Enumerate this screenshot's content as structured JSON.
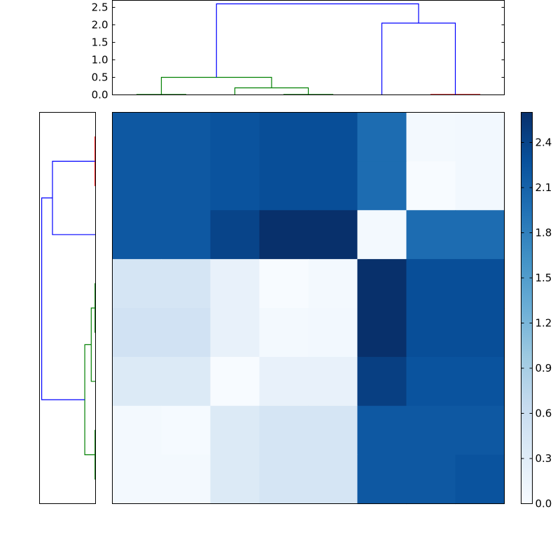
{
  "chart_data": [
    {
      "type": "dendrogram",
      "orientation": "top",
      "ylim": [
        0,
        2.7
      ],
      "yticks": [
        "0.0",
        "0.5",
        "1.0",
        "1.5",
        "2.0",
        "2.5"
      ],
      "leaf_count": 8,
      "links": [
        {
          "a": 0.5,
          "b": 1.5,
          "h0a": 0.0,
          "h0b": 0.0,
          "h": 0.01,
          "color": "#008000"
        },
        {
          "a": 3.5,
          "b": 4.5,
          "h0a": 0.0,
          "h0b": 0.0,
          "h": 0.01,
          "color": "#008000"
        },
        {
          "a": 2.5,
          "b": 4.0,
          "h0a": 0.0,
          "h0b": 0.01,
          "h": 0.2,
          "color": "#008000"
        },
        {
          "a": 1.0,
          "b": 3.25,
          "h0a": 0.01,
          "h0b": 0.2,
          "h": 0.5,
          "color": "#008000"
        },
        {
          "a": 6.5,
          "b": 7.5,
          "h0a": 0.0,
          "h0b": 0.0,
          "h": 0.01,
          "color": "#ff0000"
        },
        {
          "a": 5.5,
          "b": 7.0,
          "h0a": 0.0,
          "h0b": 0.01,
          "h": 2.05,
          "color": "#0000ff"
        },
        {
          "a": 2.125,
          "b": 6.25,
          "h0a": 0.5,
          "h0b": 2.05,
          "h": 2.6,
          "color": "#0000ff"
        }
      ]
    },
    {
      "type": "dendrogram",
      "orientation": "left",
      "leaf_count": 8,
      "links": [
        {
          "a": 0.5,
          "b": 1.5,
          "h0a": 0.0,
          "h0b": 0.0,
          "h": 0.01,
          "color": "#ff0000"
        },
        {
          "a": 1.0,
          "b": 2.5,
          "h0a": 0.01,
          "h0b": 0.0,
          "h": 0.8,
          "color": "#0000ff"
        },
        {
          "a": 3.5,
          "b": 4.5,
          "h0a": 0.0,
          "h0b": 0.0,
          "h": 0.01,
          "color": "#008000"
        },
        {
          "a": 4.0,
          "b": 5.5,
          "h0a": 0.01,
          "h0b": 0.0,
          "h": 0.08,
          "color": "#008000"
        },
        {
          "a": 6.5,
          "b": 7.5,
          "h0a": 0.0,
          "h0b": 0.0,
          "h": 0.01,
          "color": "#008000"
        },
        {
          "a": 4.75,
          "b": 7.0,
          "h0a": 0.08,
          "h0b": 0.01,
          "h": 0.2,
          "color": "#008000"
        },
        {
          "a": 1.75,
          "b": 5.875,
          "h0a": 0.8,
          "h0b": 0.2,
          "h": 1.0,
          "color": "#0000ff"
        }
      ]
    },
    {
      "type": "heatmap",
      "colormap": "Blues",
      "vmin": 0,
      "vmax": 2.6,
      "values": [
        [
          2.2,
          2.2,
          2.25,
          2.3,
          2.3,
          2.0,
          0.05,
          0.06
        ],
        [
          2.2,
          2.2,
          2.25,
          2.3,
          2.3,
          2.0,
          0.0,
          0.06
        ],
        [
          2.2,
          2.2,
          2.4,
          2.6,
          2.6,
          0.05,
          2.0,
          2.0
        ],
        [
          0.45,
          0.45,
          0.2,
          0.0,
          0.05,
          2.6,
          2.3,
          2.3
        ],
        [
          0.5,
          0.5,
          0.2,
          0.05,
          0.06,
          2.6,
          2.3,
          2.3
        ],
        [
          0.35,
          0.35,
          0.0,
          0.2,
          0.2,
          2.45,
          2.25,
          2.25
        ],
        [
          0.05,
          0.02,
          0.35,
          0.45,
          0.45,
          2.2,
          2.2,
          2.2
        ],
        [
          0.05,
          0.05,
          0.35,
          0.45,
          0.45,
          2.2,
          2.2,
          2.25
        ]
      ],
      "colorbar": {
        "ticks": [
          "0.0",
          "0.3",
          "0.6",
          "0.9",
          "1.2",
          "1.5",
          "1.8",
          "2.1",
          "2.4"
        ],
        "tick_values": [
          0,
          0.3,
          0.6,
          0.9,
          1.2,
          1.5,
          1.8,
          2.1,
          2.4
        ]
      }
    }
  ]
}
